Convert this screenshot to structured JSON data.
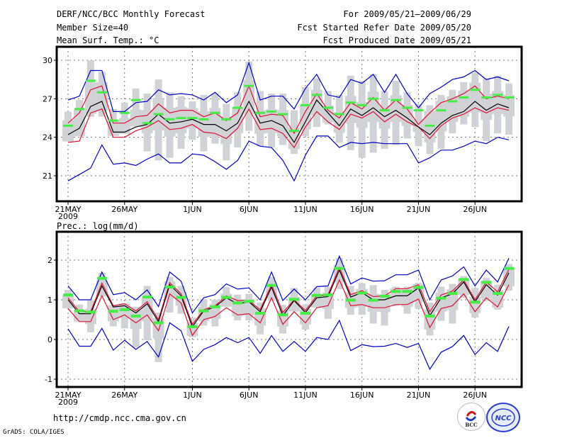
{
  "header": {
    "title": "DERF/NCC/BCC Monthly Forecast",
    "member_size": "Member Size=40",
    "variable1": "Mean Surf. Temp.: °C",
    "period": "For 2009/05/21—2009/06/29",
    "started": "Fcst Started Refer Date 2009/05/20",
    "produced": "Fcst Produced Date 2009/05/21"
  },
  "footer": {
    "url": "http://cmdp.ncc.cma.gov.cn",
    "credit": "GrADS: COLA/IGES",
    "logos": [
      "BCC",
      "NCC"
    ]
  },
  "colors": {
    "extreme": "#0000cc",
    "quartile": "#dd1133",
    "median": "#000000",
    "mean_marker": "#44ee44",
    "spread_bar": "#d0d2d6"
  },
  "chart_data": [
    {
      "type": "line",
      "title": "Mean Surf. Temp.: °C",
      "xlabel": "",
      "ylabel": "",
      "ylim": [
        19,
        31
      ],
      "yticks": [
        21,
        24,
        27,
        30
      ],
      "xticks": [
        {
          "day": 0,
          "label": "21MAY",
          "sub": "2009"
        },
        {
          "day": 5,
          "label": "26MAY"
        },
        {
          "day": 11,
          "label": "1JUN"
        },
        {
          "day": 16,
          "label": "6JUN"
        },
        {
          "day": 21,
          "label": "11JUN"
        },
        {
          "day": 26,
          "label": "16JUN"
        },
        {
          "day": 31,
          "label": "21JUN"
        },
        {
          "day": 36,
          "label": "26JUN"
        }
      ],
      "grid": true,
      "n_days": 40,
      "series": [
        {
          "name": "max",
          "color_key": "extreme",
          "values": [
            26.9,
            27.2,
            29.2,
            29.2,
            26.0,
            26.0,
            26.7,
            26.8,
            27.7,
            27.3,
            27.4,
            27.3,
            26.9,
            27.5,
            26.7,
            27.3,
            29.8,
            26.9,
            27.2,
            27.2,
            26.2,
            27.8,
            28.9,
            27.3,
            27.1,
            28.5,
            28.2,
            28.9,
            27.5,
            28.9,
            27.4,
            26.3,
            27.4,
            27.9,
            28.5,
            28.7,
            29.2,
            28.5,
            28.7,
            28.4
          ]
        },
        {
          "name": "upper_quartile",
          "color_key": "quartile",
          "values": [
            25.1,
            25.9,
            27.7,
            28.0,
            25.1,
            25.1,
            25.6,
            25.7,
            26.6,
            25.9,
            26.1,
            26.1,
            25.6,
            25.9,
            25.3,
            25.9,
            28.0,
            25.6,
            25.8,
            25.7,
            24.3,
            26.0,
            27.4,
            26.1,
            25.5,
            26.7,
            26.2,
            27.1,
            26.1,
            26.9,
            26.2,
            25.0,
            25.9,
            26.7,
            27.0,
            27.4,
            28.0,
            27.0,
            27.2,
            27.0
          ]
        },
        {
          "name": "median",
          "color_key": "median",
          "values": [
            24.2,
            24.7,
            26.4,
            26.8,
            24.4,
            24.4,
            24.8,
            25.0,
            25.8,
            25.1,
            25.2,
            25.4,
            25.0,
            25.0,
            24.5,
            25.1,
            26.8,
            25.1,
            25.3,
            24.9,
            23.6,
            25.2,
            26.9,
            25.9,
            24.9,
            26.2,
            25.7,
            26.3,
            25.6,
            26.1,
            25.5,
            24.8,
            24.2,
            25.1,
            25.7,
            26.0,
            26.8,
            26.1,
            26.6,
            26.3
          ]
        },
        {
          "name": "lower_quartile",
          "color_key": "quartile",
          "values": [
            23.6,
            23.7,
            25.9,
            26.2,
            24.0,
            24.0,
            24.5,
            24.8,
            25.3,
            24.6,
            24.7,
            25.0,
            24.4,
            24.3,
            23.9,
            24.7,
            26.2,
            24.6,
            24.7,
            24.3,
            23.2,
            24.8,
            26.0,
            25.2,
            24.6,
            25.8,
            25.5,
            26.0,
            25.2,
            25.8,
            25.2,
            24.8,
            23.9,
            24.9,
            25.5,
            25.8,
            26.3,
            25.9,
            26.3,
            26.1
          ]
        },
        {
          "name": "min",
          "color_key": "extreme",
          "values": [
            20.6,
            21.1,
            21.6,
            23.4,
            21.9,
            22.0,
            21.8,
            22.3,
            22.7,
            22.0,
            22.0,
            22.7,
            22.6,
            22.1,
            21.5,
            22.2,
            23.7,
            23.3,
            23.2,
            22.2,
            20.6,
            22.6,
            24.1,
            24.1,
            23.2,
            23.6,
            23.5,
            23.6,
            23.5,
            23.5,
            23.5,
            22.0,
            22.4,
            23.0,
            23.0,
            23.3,
            23.7,
            23.5,
            24.0,
            23.8
          ]
        },
        {
          "name": "ens_mean",
          "color_key": "mean_marker",
          "values": [
            24.9,
            26.2,
            28.4,
            27.5,
            25.3,
            25.9,
            26.9,
            25.1,
            25.8,
            25.4,
            25.5,
            25.5,
            25.4,
            25.9,
            25.4,
            26.3,
            28.0,
            25.9,
            26.0,
            25.8,
            24.5,
            26.5,
            27.3,
            26.3,
            25.8,
            26.7,
            26.5,
            27.0,
            26.1,
            26.9,
            26.3,
            26.1,
            24.9,
            26.1,
            26.8,
            27.1,
            27.7,
            27.1,
            27.3,
            27.1
          ]
        },
        {
          "name": "spread_high",
          "color_key": "spread_bar",
          "values": [
            26.0,
            26.9,
            30.0,
            29.1,
            26.2,
            26.7,
            27.8,
            27.4,
            28.5,
            27.5,
            27.2,
            26.8,
            27.3,
            27.4,
            26.6,
            27.5,
            29.9,
            27.6,
            27.4,
            27.4,
            26.1,
            27.9,
            28.6,
            27.6,
            27.3,
            28.8,
            28.4,
            28.9,
            27.6,
            28.4,
            27.5,
            26.6,
            26.5,
            27.3,
            27.7,
            28.3,
            29.0,
            28.6,
            28.8,
            28.2
          ]
        },
        {
          "name": "spread_low",
          "color_key": "spread_bar",
          "values": [
            23.9,
            25.2,
            25.6,
            25.6,
            24.4,
            25.0,
            25.8,
            22.9,
            22.2,
            22.4,
            23.1,
            23.8,
            22.9,
            23.5,
            22.2,
            23.2,
            24.5,
            23.3,
            23.2,
            23.4,
            22.7,
            24.1,
            24.8,
            25.0,
            23.6,
            23.0,
            22.4,
            22.8,
            23.1,
            23.4,
            23.9,
            23.3,
            22.7,
            23.1,
            24.3,
            25.0,
            24.8,
            23.7,
            24.3,
            24.2
          ]
        }
      ]
    },
    {
      "type": "line",
      "title": "Prec.: log(mm/d)",
      "xlabel": "",
      "ylabel": "",
      "ylim": [
        -1.2,
        2.6
      ],
      "yticks": [
        -1,
        0,
        1,
        2
      ],
      "xticks": [
        {
          "day": 0,
          "label": "21MAY",
          "sub": "2009"
        },
        {
          "day": 5,
          "label": "26MAY"
        },
        {
          "day": 11,
          "label": "1JUN"
        },
        {
          "day": 16,
          "label": "6JUN"
        },
        {
          "day": 21,
          "label": "11JUN"
        },
        {
          "day": 26,
          "label": "16JUN"
        },
        {
          "day": 31,
          "label": "21JUN"
        },
        {
          "day": 36,
          "label": "26JUN"
        }
      ],
      "grid": true,
      "n_days": 40,
      "series": [
        {
          "name": "max",
          "color_key": "extreme",
          "values": [
            1.35,
            1.0,
            1.0,
            1.7,
            1.13,
            1.18,
            1.0,
            1.25,
            0.83,
            1.7,
            1.47,
            0.67,
            1.05,
            1.13,
            1.4,
            1.27,
            1.3,
            1.0,
            1.7,
            0.98,
            1.27,
            1.0,
            1.33,
            1.35,
            2.1,
            1.4,
            1.55,
            1.47,
            1.48,
            1.63,
            1.63,
            1.75,
            1.0,
            1.5,
            1.6,
            1.83,
            1.35,
            1.75,
            1.45,
            2.05
          ]
        },
        {
          "name": "upper_quartile",
          "color_key": "quartile",
          "values": [
            1.05,
            0.7,
            0.7,
            1.42,
            0.85,
            0.9,
            0.72,
            0.95,
            0.5,
            1.43,
            1.15,
            0.38,
            0.75,
            0.85,
            1.1,
            0.98,
            0.98,
            0.75,
            1.38,
            0.68,
            1.0,
            0.73,
            1.1,
            1.13,
            1.82,
            1.13,
            1.23,
            1.08,
            1.1,
            1.28,
            1.28,
            1.38,
            0.7,
            1.12,
            1.22,
            1.5,
            1.0,
            1.45,
            1.2,
            1.77
          ]
        },
        {
          "name": "median",
          "color_key": "median",
          "values": [
            1.0,
            0.65,
            0.65,
            1.35,
            0.82,
            0.85,
            0.67,
            0.9,
            0.45,
            1.38,
            1.1,
            0.32,
            0.72,
            0.82,
            1.05,
            0.9,
            0.95,
            0.7,
            1.32,
            0.6,
            0.98,
            0.68,
            1.05,
            1.08,
            1.75,
            1.07,
            1.18,
            1.0,
            1.0,
            1.1,
            1.1,
            1.3,
            0.6,
            1.05,
            1.15,
            1.45,
            0.95,
            1.38,
            1.12,
            1.68
          ]
        },
        {
          "name": "lower_quartile",
          "color_key": "quartile",
          "values": [
            0.78,
            0.45,
            0.45,
            1.1,
            0.5,
            0.62,
            0.42,
            0.62,
            0.22,
            1.15,
            0.92,
            0.1,
            0.5,
            0.58,
            0.8,
            0.62,
            0.65,
            0.42,
            1.05,
            0.38,
            0.7,
            0.42,
            0.8,
            0.85,
            1.5,
            0.85,
            0.88,
            0.8,
            0.8,
            0.88,
            0.88,
            1.02,
            0.3,
            0.78,
            0.85,
            1.15,
            0.7,
            1.05,
            0.82,
            1.38
          ]
        },
        {
          "name": "min",
          "color_key": "extreme",
          "values": [
            0.27,
            -0.17,
            -0.17,
            0.28,
            -0.27,
            -0.02,
            -0.25,
            -0.05,
            -0.44,
            0.42,
            0.22,
            -0.55,
            -0.25,
            -0.13,
            0.05,
            -0.08,
            0.05,
            -0.35,
            0.1,
            -0.3,
            -0.05,
            -0.3,
            0.05,
            0.0,
            0.48,
            -0.28,
            -0.13,
            -0.18,
            -0.17,
            -0.1,
            -0.2,
            -0.1,
            -0.75,
            -0.32,
            -0.18,
            0.1,
            -0.38,
            -0.08,
            -0.3,
            0.33
          ]
        },
        {
          "name": "ens_mean",
          "color_key": "mean_marker",
          "values": [
            1.13,
            0.73,
            0.7,
            1.55,
            0.72,
            0.76,
            0.6,
            1.08,
            0.43,
            1.33,
            1.07,
            0.33,
            0.73,
            0.83,
            1.07,
            0.93,
            0.97,
            0.67,
            1.37,
            0.63,
            1.02,
            0.67,
            1.12,
            1.13,
            1.8,
            1.0,
            1.18,
            1.0,
            1.1,
            1.22,
            1.22,
            1.32,
            0.6,
            1.05,
            1.17,
            1.52,
            0.95,
            1.45,
            1.17,
            1.8
          ]
        },
        {
          "name": "spread_high",
          "color_key": "spread_bar",
          "values": [
            1.25,
            0.88,
            0.98,
            1.68,
            0.87,
            0.92,
            0.82,
            1.35,
            0.68,
            1.58,
            1.35,
            0.55,
            1.02,
            1.0,
            1.32,
            1.13,
            1.15,
            0.93,
            1.58,
            0.87,
            1.3,
            0.88,
            1.3,
            1.33,
            2.05,
            1.35,
            1.42,
            1.37,
            1.25,
            1.33,
            1.33,
            1.43,
            0.93,
            1.33,
            1.4,
            1.6,
            1.3,
            1.55,
            1.38,
            1.9
          ]
        },
        {
          "name": "spread_low",
          "color_key": "spread_bar",
          "values": [
            0.8,
            0.45,
            0.18,
            1.08,
            0.33,
            0.28,
            -0.2,
            -0.02,
            -0.57,
            0.68,
            0.65,
            0.06,
            0.35,
            0.33,
            0.9,
            0.48,
            0.48,
            0.13,
            0.97,
            0.15,
            0.72,
            0.25,
            0.82,
            0.52,
            1.27,
            0.62,
            0.62,
            0.4,
            0.35,
            0.85,
            0.65,
            0.77,
            0.1,
            0.47,
            0.4,
            1.05,
            0.55,
            0.97,
            0.75,
            1.23
          ]
        }
      ]
    }
  ]
}
